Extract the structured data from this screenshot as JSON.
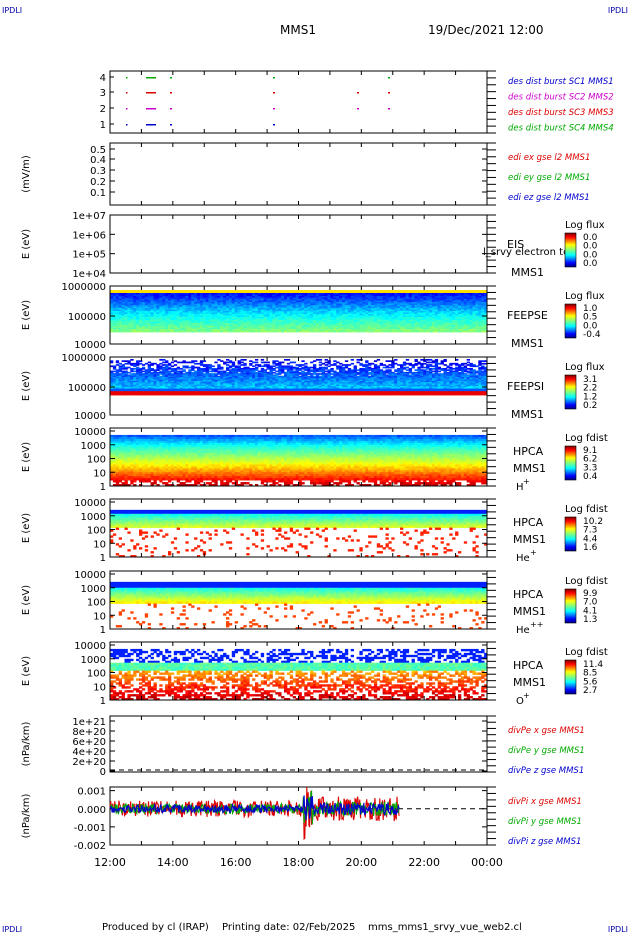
{
  "header": {
    "corner_label": "IPDLI",
    "mission": "MMS1",
    "datetime": "19/Dec/2021 12:00"
  },
  "footer": {
    "produced_by": "Produced by cl (IRAP)",
    "printing_date": "Printing date: 02/Feb/2025",
    "script_name": "mms_mms1_srvy_vue_web2.cl"
  },
  "chart_data": {
    "type": "heatmap",
    "time_axis": {
      "ticks": [
        "12:00",
        "14:00",
        "16:00",
        "18:00",
        "20:00",
        "22:00",
        "00:00"
      ],
      "range_hours": [
        12,
        24
      ]
    },
    "panels": [
      {
        "id": "burst",
        "type": "scatter",
        "y_ticks": [
          "4",
          "3",
          "2",
          "1"
        ],
        "legend": [
          {
            "label": "des dist burst SC1 MMS1",
            "color": "#0000cc"
          },
          {
            "label": "des dist burst SC2 MMS2",
            "color": "#cc00cc"
          },
          {
            "label": "des dist burst SC3 MMS3",
            "color": "#dd0000"
          },
          {
            "label": "des dist burst SC4 MMS4",
            "color": "#00aa00"
          }
        ]
      },
      {
        "id": "edi",
        "type": "line",
        "ylabel": "(mV/m)",
        "y_ticks": [
          "0.5",
          "0.4",
          "0.3",
          "0.2",
          "0.1"
        ],
        "legend": [
          {
            "label": "edi ex gse l2 MMS1",
            "color": "#dd0000"
          },
          {
            "label": "edi ey gse l2 MMS1",
            "color": "#00aa00"
          },
          {
            "label": "edi ez gse l2 MMS1",
            "color": "#0000cc"
          }
        ]
      },
      {
        "id": "eis",
        "type": "heatmap",
        "ylabel": "E (eV)",
        "y_ticks": [
          "1e+07",
          "1e+06",
          "1e+05",
          "1e+04"
        ],
        "names": [
          "EIS",
          "MMS1"
        ],
        "overlay_label": "l_srvy electron to",
        "colorbar_title": "Log flux",
        "colorbar_ticks": [
          "0.0",
          "0.0",
          "0.0",
          "0.0"
        ]
      },
      {
        "id": "feepse",
        "type": "heatmap",
        "ylabel": "E (eV)",
        "y_ticks": [
          "1000000",
          "100000",
          "10000"
        ],
        "names": [
          "FEEPSE",
          "MMS1"
        ],
        "colorbar_title": "Log flux",
        "colorbar_ticks": [
          "1.0",
          "0.5",
          "0.0",
          "-0.4"
        ]
      },
      {
        "id": "feepsi",
        "type": "heatmap",
        "ylabel": "E (eV)",
        "y_ticks": [
          "1000000",
          "100000",
          "10000"
        ],
        "names": [
          "FEEPSI",
          "MMS1"
        ],
        "colorbar_title": "Log flux",
        "colorbar_ticks": [
          "3.1",
          "2.2",
          "1.2",
          "0.2"
        ]
      },
      {
        "id": "hpca_h",
        "type": "heatmap",
        "ylabel": "E (eV)",
        "y_ticks": [
          "10000",
          "1000",
          "100",
          "10",
          "1"
        ],
        "names": [
          "HPCA",
          "MMS1",
          "H",
          "+"
        ],
        "colorbar_title": "Log fdist",
        "colorbar_ticks": [
          "9.1",
          "6.2",
          "3.3",
          "0.4"
        ]
      },
      {
        "id": "hpca_he",
        "type": "heatmap",
        "ylabel": "E (eV)",
        "y_ticks": [
          "10000",
          "1000",
          "100",
          "10",
          "1"
        ],
        "names": [
          "HPCA",
          "MMS1",
          "He",
          "+"
        ],
        "colorbar_title": "Log fdist",
        "colorbar_ticks": [
          "10.2",
          "7.3",
          "4.4",
          "1.6"
        ]
      },
      {
        "id": "hpca_he2",
        "type": "heatmap",
        "ylabel": "E (eV)",
        "y_ticks": [
          "10000",
          "1000",
          "100",
          "10",
          "1"
        ],
        "names": [
          "HPCA",
          "MMS1",
          "He",
          "++"
        ],
        "colorbar_title": "Log fdist",
        "colorbar_ticks": [
          "9.9",
          "7.0",
          "4.1",
          "1.3"
        ]
      },
      {
        "id": "hpca_o",
        "type": "heatmap",
        "ylabel": "E (eV)",
        "y_ticks": [
          "10000",
          "1000",
          "100",
          "10",
          "1"
        ],
        "names": [
          "HPCA",
          "MMS1",
          "O",
          "+"
        ],
        "colorbar_title": "Log fdist",
        "colorbar_ticks": [
          "11.4",
          "8.5",
          "5.6",
          "2.7"
        ]
      },
      {
        "id": "divpe",
        "type": "line",
        "ylabel": "(nPa/km)",
        "y_ticks": [
          "1e+21",
          "8e+20",
          "6e+20",
          "4e+20",
          "2e+20",
          "0"
        ],
        "legend": [
          {
            "label": "divPe x gse MMS1",
            "color": "#dd0000"
          },
          {
            "label": "divPe y gse MMS1",
            "color": "#00aa00"
          },
          {
            "label": "divPe z gse MMS1",
            "color": "#0000cc"
          }
        ]
      },
      {
        "id": "divpi",
        "type": "line",
        "ylabel": "(nPa/km)",
        "y_ticks": [
          "0.001",
          "0.000",
          "-0.001",
          "-0.002"
        ],
        "ylim": [
          -0.002,
          0.0012
        ],
        "legend": [
          {
            "label": "divPi x gse MMS1",
            "color": "#dd0000"
          },
          {
            "label": "divPi y gse MMS1",
            "color": "#00aa00"
          },
          {
            "label": "divPi z gse MMS1",
            "color": "#0000cc"
          }
        ]
      }
    ]
  }
}
